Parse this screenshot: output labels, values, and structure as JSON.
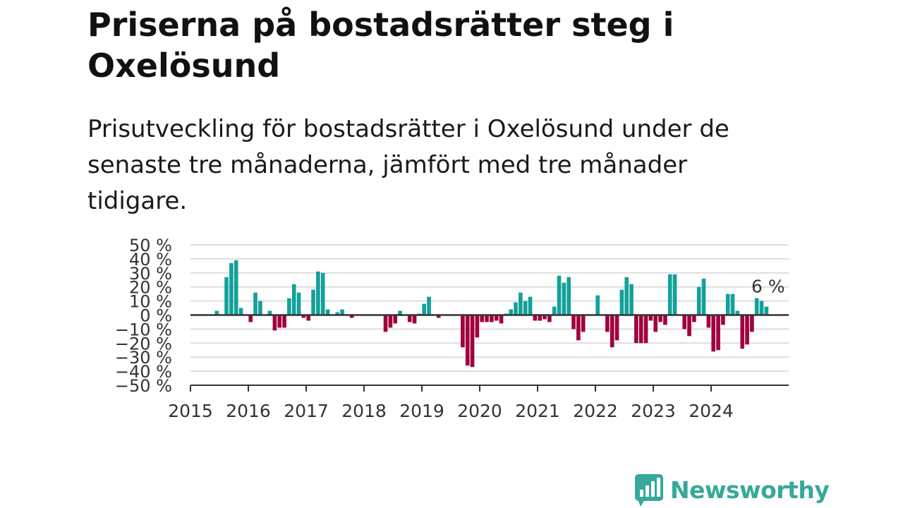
{
  "title": "Priserna på bostadsrätter steg i Oxelösund",
  "subtitle": "Prisutveckling för bostadsrätter i Oxelösund under de senaste tre månaderna, jämfört med tre månader tidigare.",
  "brand": {
    "name": "Newsworthy",
    "color": "#35a99a",
    "icon": "bar-chart-speech-bubble-icon"
  },
  "colors": {
    "positive": "#12a19a",
    "negative": "#a0003e",
    "axis": "#333333",
    "grid": "#dddddd"
  },
  "chart_data": {
    "type": "bar",
    "xlabel": "",
    "ylabel": "",
    "ylim": [
      -50,
      50
    ],
    "yticks": [
      50,
      40,
      30,
      20,
      10,
      0,
      -10,
      -20,
      -30,
      -40,
      -50
    ],
    "ytick_labels": [
      "50 %",
      "40 %",
      "30 %",
      "20 %",
      "10 %",
      "0 %",
      "−10 %",
      "−20 %",
      "−30 %",
      "−40 %",
      "−50 %"
    ],
    "xticks": [
      "2015",
      "2016",
      "2017",
      "2018",
      "2019",
      "2020",
      "2021",
      "2022",
      "2023",
      "2024"
    ],
    "grid": true,
    "x_start": "2015-01",
    "frequency": "monthly",
    "values": [
      null,
      null,
      null,
      null,
      null,
      3,
      null,
      27,
      37,
      39,
      5,
      null,
      -5,
      16,
      10,
      null,
      3,
      -11,
      -9,
      -9,
      12,
      22,
      16,
      -2,
      -4,
      18,
      31,
      30,
      4,
      null,
      2,
      4,
      null,
      -2,
      null,
      null,
      null,
      null,
      null,
      null,
      -12,
      -9,
      -6,
      3,
      null,
      -5,
      -6,
      1,
      8,
      13,
      null,
      -2,
      null,
      null,
      null,
      null,
      -23,
      -36,
      -37,
      -16,
      -5,
      -5,
      -5,
      -4,
      -6,
      1,
      4,
      9,
      16,
      10,
      13,
      -4,
      -4,
      -3,
      -5,
      6,
      28,
      23,
      27,
      -10,
      -18,
      -12,
      null,
      null,
      14,
      null,
      -12,
      -23,
      -18,
      18,
      27,
      22,
      -20,
      -20,
      -20,
      -4,
      -12,
      -5,
      -7,
      29,
      29,
      null,
      -10,
      -15,
      -5,
      20,
      26,
      -9,
      -26,
      -25,
      -7,
      15,
      15,
      3,
      -24,
      -21,
      -12,
      12,
      10,
      6
    ],
    "annotations": [
      {
        "text": "6 %",
        "x": "2024-12",
        "y": 6
      }
    ]
  }
}
